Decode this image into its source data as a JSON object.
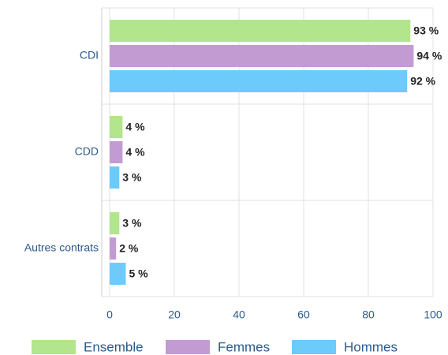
{
  "chart_data": {
    "type": "bar",
    "orientation": "horizontal",
    "categories": [
      "CDI",
      "CDD",
      "Autres contrats"
    ],
    "series": [
      {
        "name": "Ensemble",
        "color": "#b3e58c",
        "values": [
          93,
          4,
          3
        ],
        "value_labels": [
          "93 %",
          "4 %",
          "3 %"
        ]
      },
      {
        "name": "Femmes",
        "color": "#c39bd3",
        "values": [
          94,
          4,
          2
        ],
        "value_labels": [
          "94 %",
          "4 %",
          "2 %"
        ]
      },
      {
        "name": "Hommes",
        "color": "#6ccbfb",
        "values": [
          92,
          3,
          5
        ],
        "value_labels": [
          "92 %",
          "3 %",
          "5 %"
        ]
      }
    ],
    "xlim": [
      0,
      100
    ],
    "xticks": [
      0,
      20,
      40,
      60,
      80,
      100
    ],
    "grid": true,
    "legend": "bottom"
  }
}
